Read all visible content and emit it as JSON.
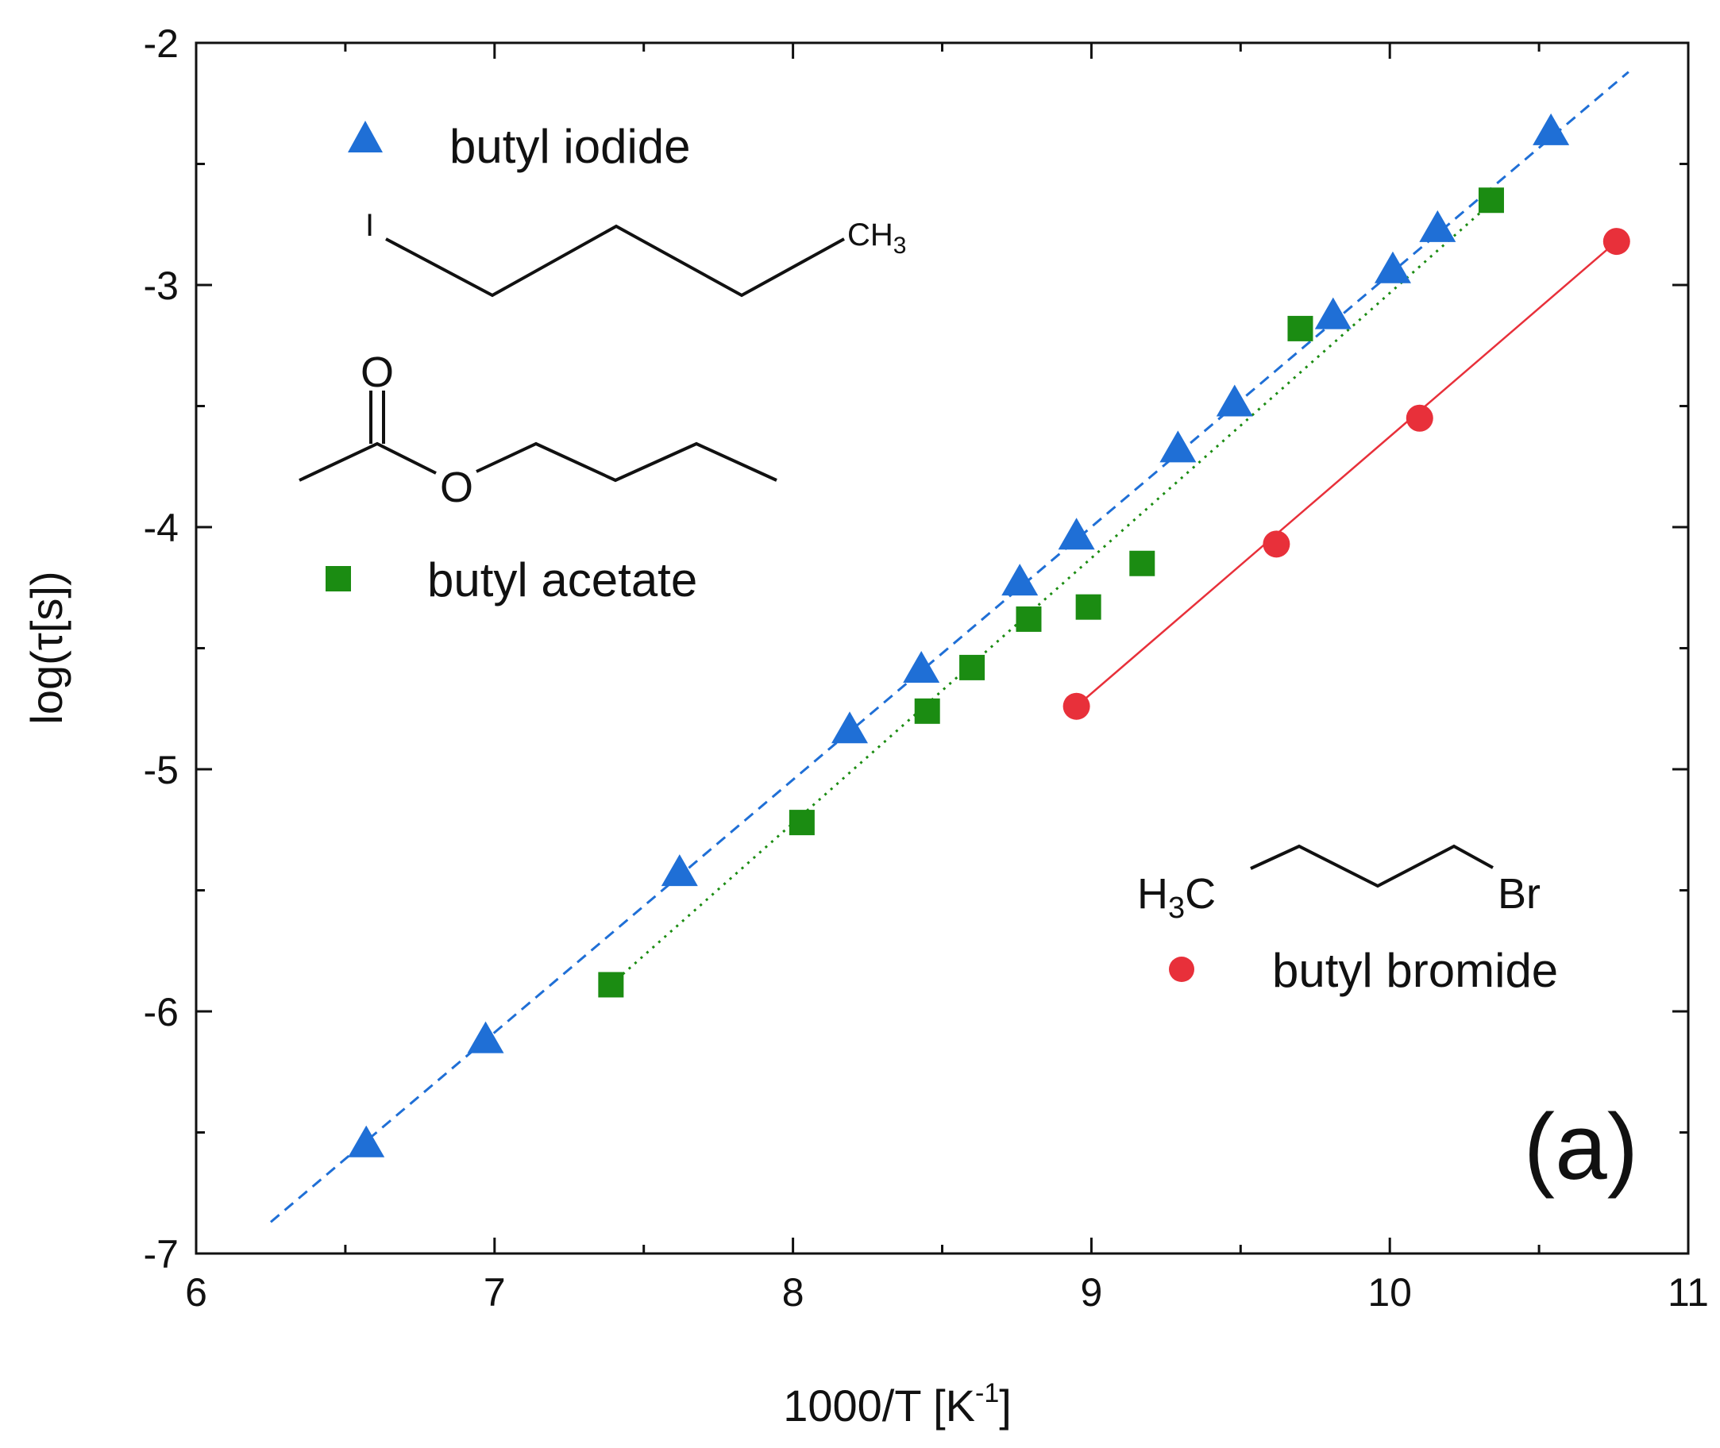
{
  "chart_data": {
    "type": "scatter",
    "xlabel": "1000/T [K",
    "xlabel_sup": "-1",
    "xlabel_end": "]",
    "ylabel": "log(τ[s])",
    "xlim": [
      6,
      11
    ],
    "ylim": [
      -7,
      -2
    ],
    "x_ticks": [
      "6",
      "7",
      "8",
      "9",
      "10",
      "11"
    ],
    "y_ticks": [
      "-7",
      "-6",
      "-5",
      "-4",
      "-3",
      "-2"
    ],
    "grid": false,
    "legend_placement": "left",
    "panel_label": "(a)",
    "series": [
      {
        "name": "butyl iodide",
        "marker": "triangle",
        "color": "#1f6fd6",
        "fit_line": "dashed",
        "fit_x": [
          6.25,
          10.8
        ],
        "fit_y": [
          -6.87,
          -2.12
        ],
        "x": [
          6.57,
          6.97,
          7.62,
          8.19,
          8.43,
          8.76,
          8.95,
          9.29,
          9.48,
          9.81,
          10.01,
          10.16,
          10.54
        ],
        "y": [
          -6.55,
          -6.12,
          -5.43,
          -4.84,
          -4.59,
          -4.23,
          -4.04,
          -3.68,
          -3.49,
          -3.13,
          -2.94,
          -2.77,
          -2.37
        ]
      },
      {
        "name": "butyl acetate",
        "marker": "square",
        "color": "#1b8c12",
        "fit_line": "dotted",
        "fit_x": [
          7.39,
          10.35
        ],
        "fit_y": [
          -5.89,
          -2.65
        ],
        "x": [
          7.39,
          8.03,
          8.45,
          8.6,
          8.79,
          8.99,
          9.17,
          9.7,
          10.34
        ],
        "y": [
          -5.89,
          -5.22,
          -4.76,
          -4.58,
          -4.38,
          -4.33,
          -4.15,
          -3.18,
          -2.65
        ]
      },
      {
        "name": "butyl bromide",
        "marker": "circle",
        "color": "#e8303a",
        "fit_line": "solid",
        "fit_x": [
          8.95,
          10.76
        ],
        "fit_y": [
          -4.74,
          -2.82
        ],
        "x": [
          8.95,
          9.62,
          10.1,
          10.76
        ],
        "y": [
          -4.74,
          -4.07,
          -3.55,
          -2.82
        ]
      }
    ],
    "structure_labels": {
      "iodide_I": "I",
      "iodide_CH": "CH",
      "iodide_sub": "3",
      "acetate_O1": "O",
      "acetate_O2": "O",
      "bromide_H": "H",
      "bromide_sub": "3",
      "bromide_C": "C",
      "bromide_Br": "Br"
    }
  }
}
